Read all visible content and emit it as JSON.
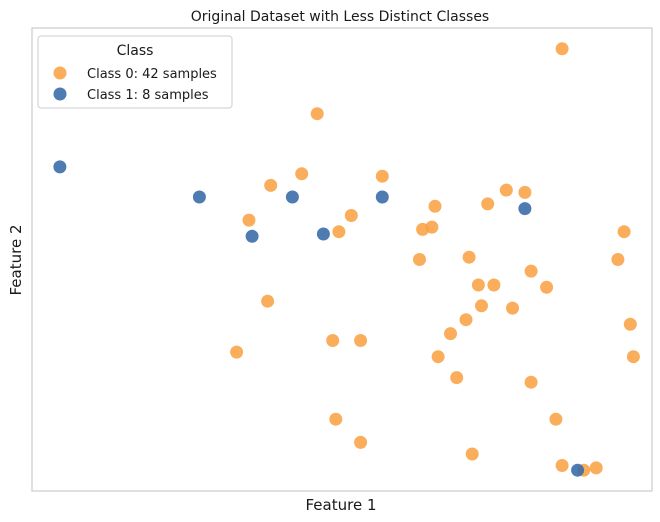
{
  "chart_data": {
    "type": "scatter",
    "title": "Original Dataset with Less Distinct Classes",
    "xlabel": "Feature 1",
    "ylabel": "Feature 2",
    "xlim": [
      0,
      100
    ],
    "ylim": [
      0,
      100
    ],
    "x_ticks_visible": false,
    "y_ticks_visible": false,
    "grid": false,
    "legend": {
      "title": "Class",
      "placement": "top-left"
    },
    "series": [
      {
        "name": "Class 0: 42 samples",
        "color": "#F9A040",
        "points": [
          [
            85.5,
            95.5
          ],
          [
            46.0,
            81.5
          ],
          [
            43.5,
            68.5
          ],
          [
            56.5,
            68.0
          ],
          [
            38.5,
            66.0
          ],
          [
            76.5,
            65.0
          ],
          [
            79.5,
            64.5
          ],
          [
            73.5,
            62.0
          ],
          [
            65.0,
            61.5
          ],
          [
            51.5,
            59.5
          ],
          [
            35.0,
            58.5
          ],
          [
            64.5,
            57.0
          ],
          [
            63.0,
            56.5
          ],
          [
            49.5,
            56.0
          ],
          [
            95.5,
            56.0
          ],
          [
            70.5,
            50.5
          ],
          [
            62.5,
            50.0
          ],
          [
            94.5,
            50.0
          ],
          [
            80.5,
            47.5
          ],
          [
            72.0,
            44.5
          ],
          [
            74.5,
            44.5
          ],
          [
            83.0,
            44.0
          ],
          [
            38.0,
            41.0
          ],
          [
            72.5,
            40.0
          ],
          [
            77.5,
            39.5
          ],
          [
            70.0,
            37.0
          ],
          [
            96.5,
            36.0
          ],
          [
            67.5,
            34.0
          ],
          [
            48.5,
            32.5
          ],
          [
            53.0,
            32.5
          ],
          [
            33.0,
            30.0
          ],
          [
            65.5,
            29.0
          ],
          [
            97.0,
            29.0
          ],
          [
            68.5,
            24.5
          ],
          [
            80.5,
            23.5
          ],
          [
            49.0,
            15.5
          ],
          [
            84.5,
            15.5
          ],
          [
            53.0,
            10.5
          ],
          [
            71.0,
            8.0
          ],
          [
            85.5,
            5.5
          ],
          [
            89.0,
            4.5
          ],
          [
            91.0,
            5.0
          ]
        ]
      },
      {
        "name": "Class 1: 8 samples",
        "color": "#3B6DAA",
        "points": [
          [
            4.5,
            70.0
          ],
          [
            27.0,
            63.5
          ],
          [
            42.0,
            63.5
          ],
          [
            56.5,
            63.5
          ],
          [
            79.5,
            61.0
          ],
          [
            35.5,
            55.0
          ],
          [
            47.0,
            55.5
          ],
          [
            88.0,
            4.5
          ]
        ]
      }
    ]
  }
}
